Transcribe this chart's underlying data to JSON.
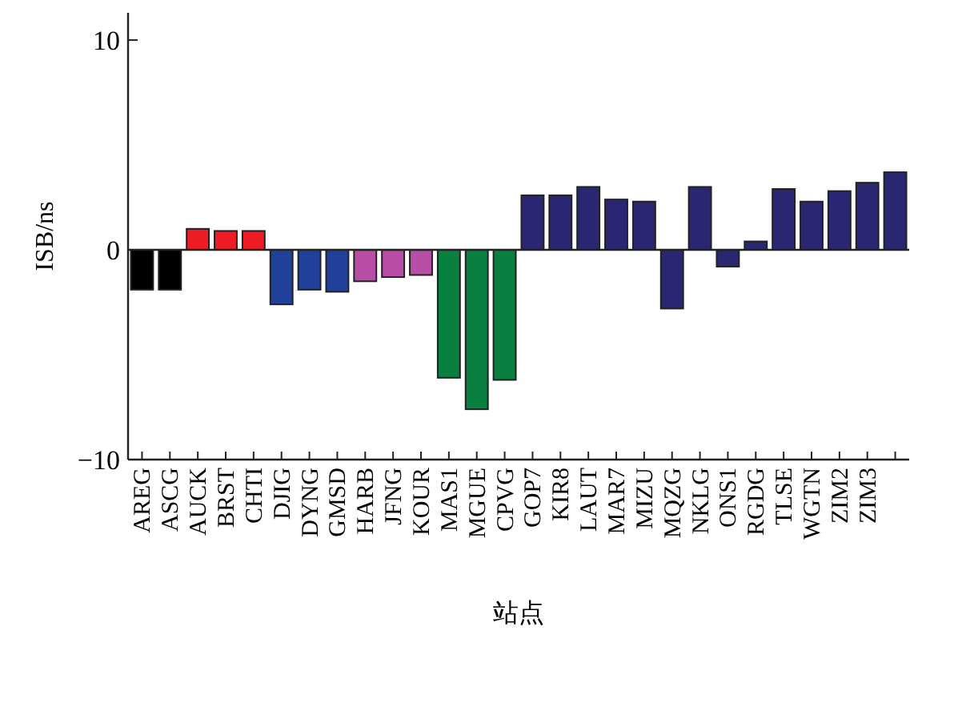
{
  "chart_data": {
    "type": "bar",
    "xlabel": "站点",
    "ylabel": "ISB/ns",
    "categories": [
      "AREG",
      "ASCG",
      "AUCK",
      "BRST",
      "CHTI",
      "DJIG",
      "DYNG",
      "GMSD",
      "HARB",
      "JFNG",
      "KOUR",
      "MAS1",
      "MGUE",
      "CPVG",
      "GOP7",
      "KIR8",
      "LAUT",
      "MAR7",
      "MIZU",
      "MQZG",
      "NKLG",
      "ONS1",
      "RGDG",
      "TLSE",
      "WGTN",
      "ZIM2",
      "ZIM3",
      null
    ],
    "values": [
      -1.9,
      -1.9,
      1.0,
      0.9,
      0.9,
      -2.6,
      -1.9,
      -2.0,
      -1.5,
      -1.3,
      -1.2,
      -6.1,
      -7.6,
      -6.2,
      2.6,
      2.6,
      3.0,
      2.4,
      2.3,
      -2.8,
      3.0,
      -0.8,
      0.4,
      2.9,
      2.3,
      2.8,
      3.2,
      3.7
    ],
    "colors": [
      "#000000",
      "#000000",
      "#ee1c25",
      "#ee1c25",
      "#ee1c25",
      "#21409a",
      "#21409a",
      "#21409a",
      "#b84ea6",
      "#b84ea6",
      "#b84ea6",
      "#0a8040",
      "#0a8040",
      "#0a8040",
      "#2b2671",
      "#2b2671",
      "#2b2671",
      "#2b2671",
      "#2b2671",
      "#2b2671",
      "#2b2671",
      "#2b2671",
      "#2b2671",
      "#2b2671",
      "#2b2671",
      "#2b2671",
      "#2b2671",
      "#2b2671"
    ],
    "ylim": [
      -10,
      11.3
    ],
    "yticks": [
      {
        "value": -10,
        "label": "−10"
      },
      0,
      10
    ]
  }
}
